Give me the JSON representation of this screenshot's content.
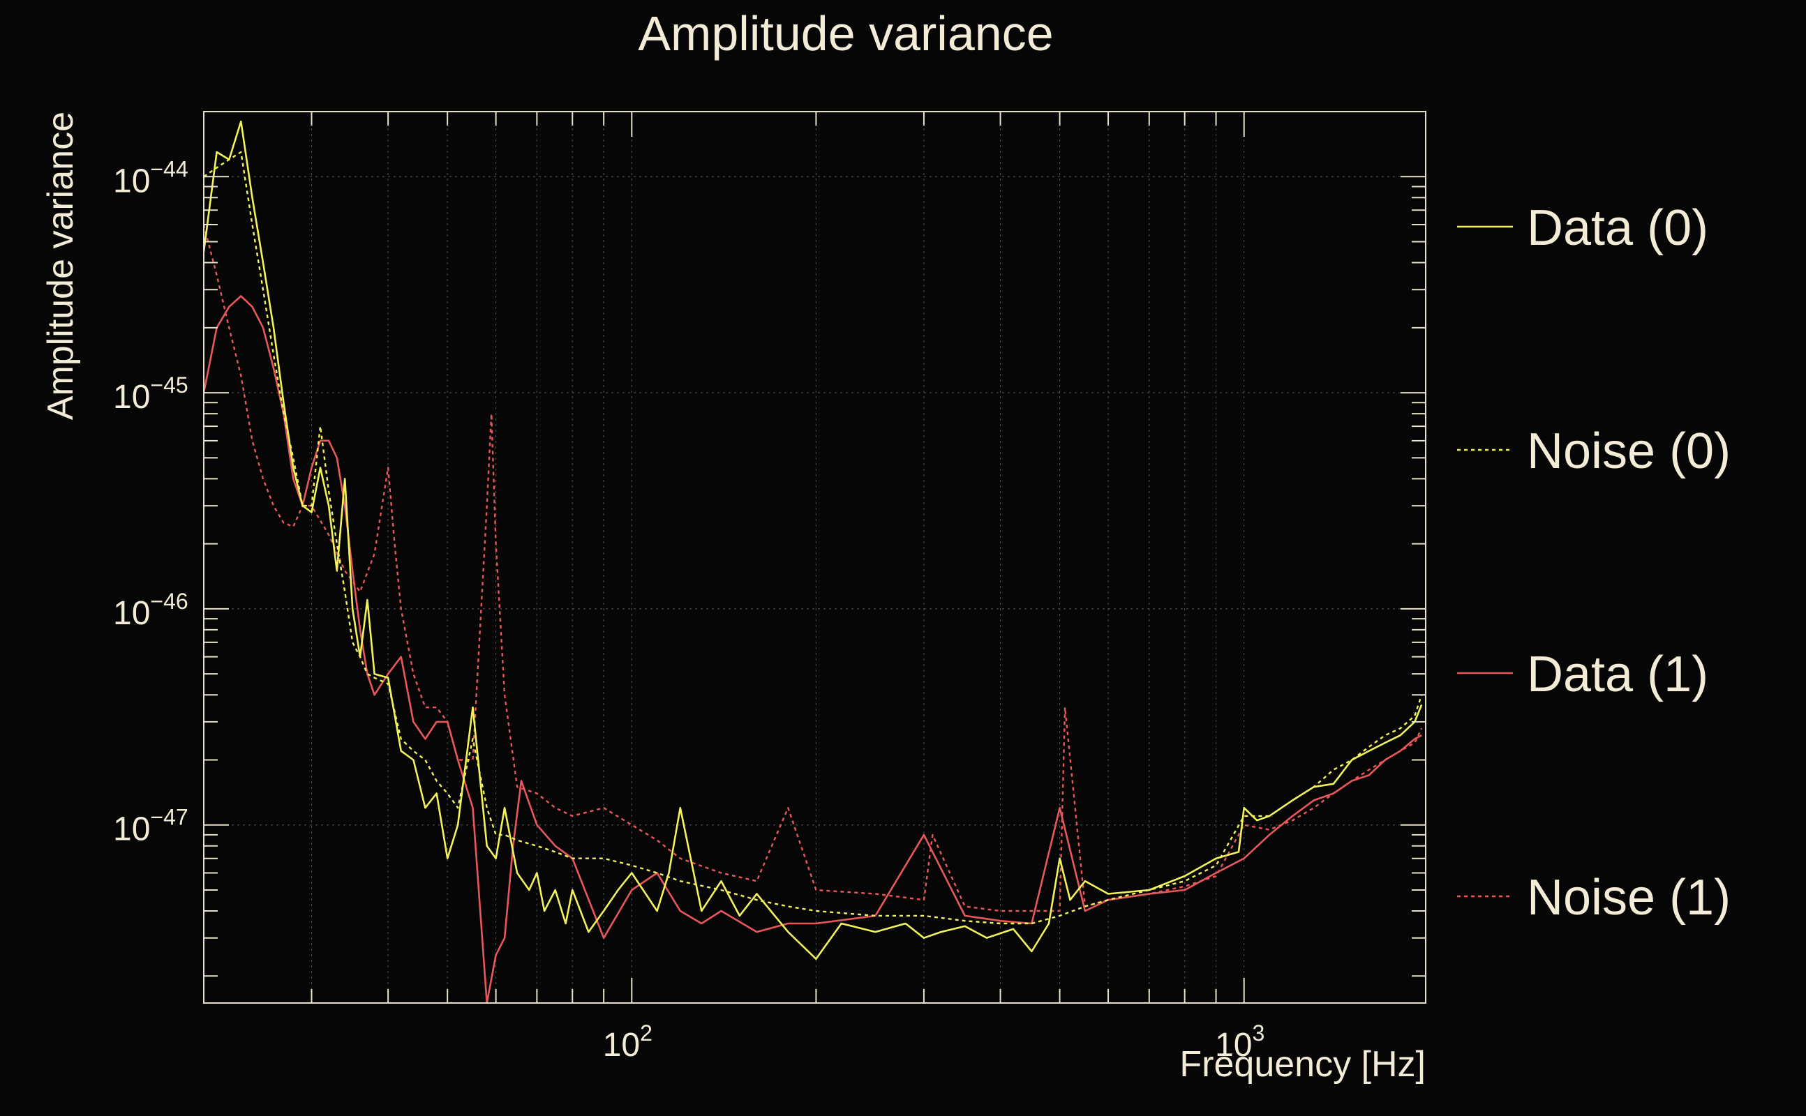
{
  "chart_data": {
    "type": "line",
    "title": "Amplitude variance",
    "xlabel": "Frequency [Hz]",
    "ylabel": "Amplitude variance",
    "xscale": "log",
    "yscale": "log",
    "xlim": [
      20,
      1980
    ],
    "ylim": [
      1.5e-48,
      2e-44
    ],
    "grid": true,
    "legend_position": "right",
    "colors": {
      "background": "#060606",
      "frame": "#e8e1cc",
      "grid": "#4a4a4a",
      "text": "#f3ecd6",
      "yellow": "#f2f25a",
      "red": "#e8585a"
    },
    "x_ticks": [
      {
        "value": 100,
        "base": "10",
        "exp": "2"
      },
      {
        "value": 1000,
        "base": "10",
        "exp": "3"
      }
    ],
    "y_ticks": [
      {
        "value": 1e-44,
        "base": "10",
        "exp": "−44"
      },
      {
        "value": 1e-45,
        "base": "10",
        "exp": "−45"
      },
      {
        "value": 1e-46,
        "base": "10",
        "exp": "−46"
      },
      {
        "value": 1e-47,
        "base": "10",
        "exp": "−47"
      }
    ],
    "series": [
      {
        "name": "Data (0)",
        "color": "#f2f25a",
        "dash": "solid",
        "x": [
          20,
          21,
          22,
          23,
          24,
          25,
          26,
          27,
          28,
          29,
          30,
          31,
          32,
          33,
          34,
          35,
          36,
          37,
          38,
          40,
          42,
          44,
          46,
          48,
          50,
          52,
          55,
          58,
          60,
          62,
          65,
          68,
          70,
          72,
          75,
          78,
          80,
          85,
          90,
          95,
          100,
          110,
          115,
          120,
          130,
          140,
          150,
          160,
          180,
          200,
          220,
          250,
          280,
          300,
          320,
          350,
          380,
          420,
          450,
          480,
          500,
          520,
          550,
          600,
          700,
          800,
          900,
          980,
          1000,
          1050,
          1100,
          1200,
          1300,
          1400,
          1500,
          1600,
          1700,
          1800,
          1900,
          1950
        ],
        "y": [
          4.5e-45,
          1.3e-44,
          1.2e-44,
          1.8e-44,
          8e-45,
          4e-45,
          2e-45,
          9e-46,
          4.5e-46,
          3e-46,
          2.8e-46,
          4.5e-46,
          3e-46,
          1.5e-46,
          4e-46,
          1e-46,
          6e-47,
          1.1e-46,
          5e-47,
          4.8e-47,
          2.2e-47,
          2e-47,
          1.2e-47,
          1.4e-47,
          7e-48,
          1e-47,
          3.5e-47,
          8e-48,
          7e-48,
          1.2e-47,
          6e-48,
          5e-48,
          6e-48,
          4e-48,
          5e-48,
          3.5e-48,
          5e-48,
          3.2e-48,
          4e-48,
          5e-48,
          6e-48,
          4e-48,
          6e-48,
          1.2e-47,
          4e-48,
          5.5e-48,
          3.8e-48,
          4.8e-48,
          3.2e-48,
          2.4e-48,
          3.5e-48,
          3.2e-48,
          3.5e-48,
          3e-48,
          3.2e-48,
          3.4e-48,
          3e-48,
          3.3e-48,
          2.6e-48,
          3.5e-48,
          7e-48,
          4.5e-48,
          5.5e-48,
          4.8e-48,
          5e-48,
          5.8e-48,
          7e-48,
          7.5e-48,
          1.2e-47,
          1.05e-47,
          1.1e-47,
          1.3e-47,
          1.5e-47,
          1.55e-47,
          2e-47,
          2.2e-47,
          2.4e-47,
          2.6e-47,
          3e-47,
          3.6e-47
        ]
      },
      {
        "name": "Noise (0)",
        "color": "#f2f25a",
        "dash": "dashed",
        "x": [
          20,
          21,
          22,
          23,
          24,
          25,
          26,
          27,
          28,
          29,
          30,
          31,
          32,
          33,
          34,
          35,
          36,
          37,
          38,
          40,
          42,
          44,
          46,
          48,
          50,
          52,
          55,
          58,
          60,
          62,
          65,
          70,
          75,
          80,
          90,
          100,
          110,
          120,
          140,
          160,
          180,
          200,
          250,
          300,
          350,
          400,
          450,
          500,
          550,
          600,
          700,
          800,
          900,
          1000,
          1100,
          1200,
          1300,
          1400,
          1500,
          1600,
          1700,
          1800,
          1900,
          1950
        ],
        "y": [
          1e-44,
          1.1e-44,
          1.2e-44,
          1.3e-44,
          6e-45,
          3e-45,
          1.5e-45,
          8e-46,
          5e-46,
          3e-46,
          3e-46,
          7e-46,
          3.5e-46,
          2e-46,
          1.2e-46,
          7e-47,
          6e-47,
          5e-47,
          4.8e-47,
          4.5e-47,
          2.5e-47,
          2.2e-47,
          2e-47,
          1.6e-47,
          1.4e-47,
          1.2e-47,
          2.5e-47,
          1.2e-47,
          9e-48,
          9e-48,
          8.5e-48,
          8e-48,
          7.5e-48,
          7e-48,
          7e-48,
          6.5e-48,
          6e-48,
          5.5e-48,
          5e-48,
          4.5e-48,
          4.2e-48,
          4e-48,
          3.8e-48,
          3.8e-48,
          3.6e-48,
          3.5e-48,
          3.5e-48,
          3.8e-48,
          4.2e-48,
          4.5e-48,
          5e-48,
          5.5e-48,
          6.5e-48,
          1.1e-47,
          1.1e-47,
          1.3e-47,
          1.5e-47,
          1.8e-47,
          2e-47,
          2.3e-47,
          2.6e-47,
          2.8e-47,
          3.2e-47,
          4e-47
        ]
      },
      {
        "name": "Data (1)",
        "color": "#e8585a",
        "dash": "solid",
        "x": [
          20,
          21,
          22,
          23,
          24,
          25,
          26,
          27,
          28,
          29,
          30,
          31,
          32,
          33,
          34,
          35,
          36,
          37,
          38,
          40,
          42,
          44,
          46,
          48,
          50,
          52,
          55,
          58,
          60,
          62,
          64,
          66,
          70,
          75,
          80,
          90,
          100,
          110,
          120,
          130,
          140,
          160,
          180,
          200,
          250,
          300,
          350,
          400,
          450,
          500,
          550,
          600,
          700,
          800,
          900,
          1000,
          1100,
          1200,
          1300,
          1400,
          1500,
          1600,
          1700,
          1800,
          1900,
          1950
        ],
        "y": [
          1e-45,
          2e-45,
          2.5e-45,
          2.8e-45,
          2.5e-45,
          2e-45,
          1.3e-45,
          8e-46,
          4e-46,
          3e-46,
          4.5e-46,
          6e-46,
          6e-46,
          5e-46,
          3e-46,
          1.5e-46,
          8e-47,
          5e-47,
          4e-47,
          5e-47,
          6e-47,
          3e-47,
          2.5e-47,
          3e-47,
          3e-47,
          2e-47,
          1.2e-47,
          1.5e-48,
          2.5e-48,
          3e-48,
          8e-48,
          1.6e-47,
          1e-47,
          8e-48,
          7e-48,
          3e-48,
          5e-48,
          6e-48,
          4e-48,
          3.5e-48,
          4e-48,
          3.2e-48,
          3.5e-48,
          3.5e-48,
          3.8e-48,
          9e-48,
          3.8e-48,
          3.6e-48,
          3.5e-48,
          1.2e-47,
          4e-48,
          4.5e-48,
          4.8e-48,
          5e-48,
          6e-48,
          7e-48,
          9e-48,
          1.1e-47,
          1.3e-47,
          1.4e-47,
          1.6e-47,
          1.7e-47,
          2e-47,
          2.2e-47,
          2.5e-47,
          2.6e-47
        ]
      },
      {
        "name": "Noise (1)",
        "color": "#e8585a",
        "dash": "dashed",
        "x": [
          20,
          21,
          22,
          23,
          24,
          25,
          26,
          27,
          28,
          29,
          30,
          32,
          34,
          36,
          38,
          40,
          41,
          42,
          44,
          46,
          48,
          50,
          52,
          55,
          58,
          59,
          60,
          62,
          65,
          70,
          75,
          80,
          90,
          100,
          110,
          120,
          140,
          160,
          180,
          200,
          250,
          300,
          310,
          350,
          400,
          450,
          500,
          510,
          550,
          600,
          700,
          800,
          900,
          1000,
          1100,
          1200,
          1300,
          1400,
          1500,
          1600,
          1700,
          1800,
          1900,
          1950
        ],
        "y": [
          6e-45,
          3.5e-45,
          2e-45,
          1.2e-45,
          6e-46,
          4e-46,
          3e-46,
          2.5e-46,
          2.4e-46,
          3e-46,
          3e-46,
          2.2e-46,
          1.5e-46,
          1.2e-46,
          1.8e-46,
          4.5e-46,
          2e-46,
          1e-46,
          5e-47,
          3.5e-47,
          3.5e-47,
          3e-47,
          2e-47,
          2e-47,
          3e-46,
          8e-46,
          2e-46,
          4e-47,
          1.5e-47,
          1.4e-47,
          1.2e-47,
          1.1e-47,
          1.2e-47,
          1e-47,
          8.5e-48,
          7e-48,
          6e-48,
          5.5e-48,
          1.2e-47,
          5e-48,
          4.8e-48,
          4.5e-48,
          9e-48,
          4.2e-48,
          4e-48,
          4e-48,
          4e-48,
          3.5e-47,
          4.2e-48,
          4.5e-48,
          4.8e-48,
          5.2e-48,
          5.8e-48,
          1e-47,
          9.5e-48,
          1.05e-47,
          1.2e-47,
          1.4e-47,
          1.6e-47,
          1.8e-47,
          2e-47,
          2.2e-47,
          2.4e-47,
          2.8e-47
        ]
      }
    ]
  }
}
